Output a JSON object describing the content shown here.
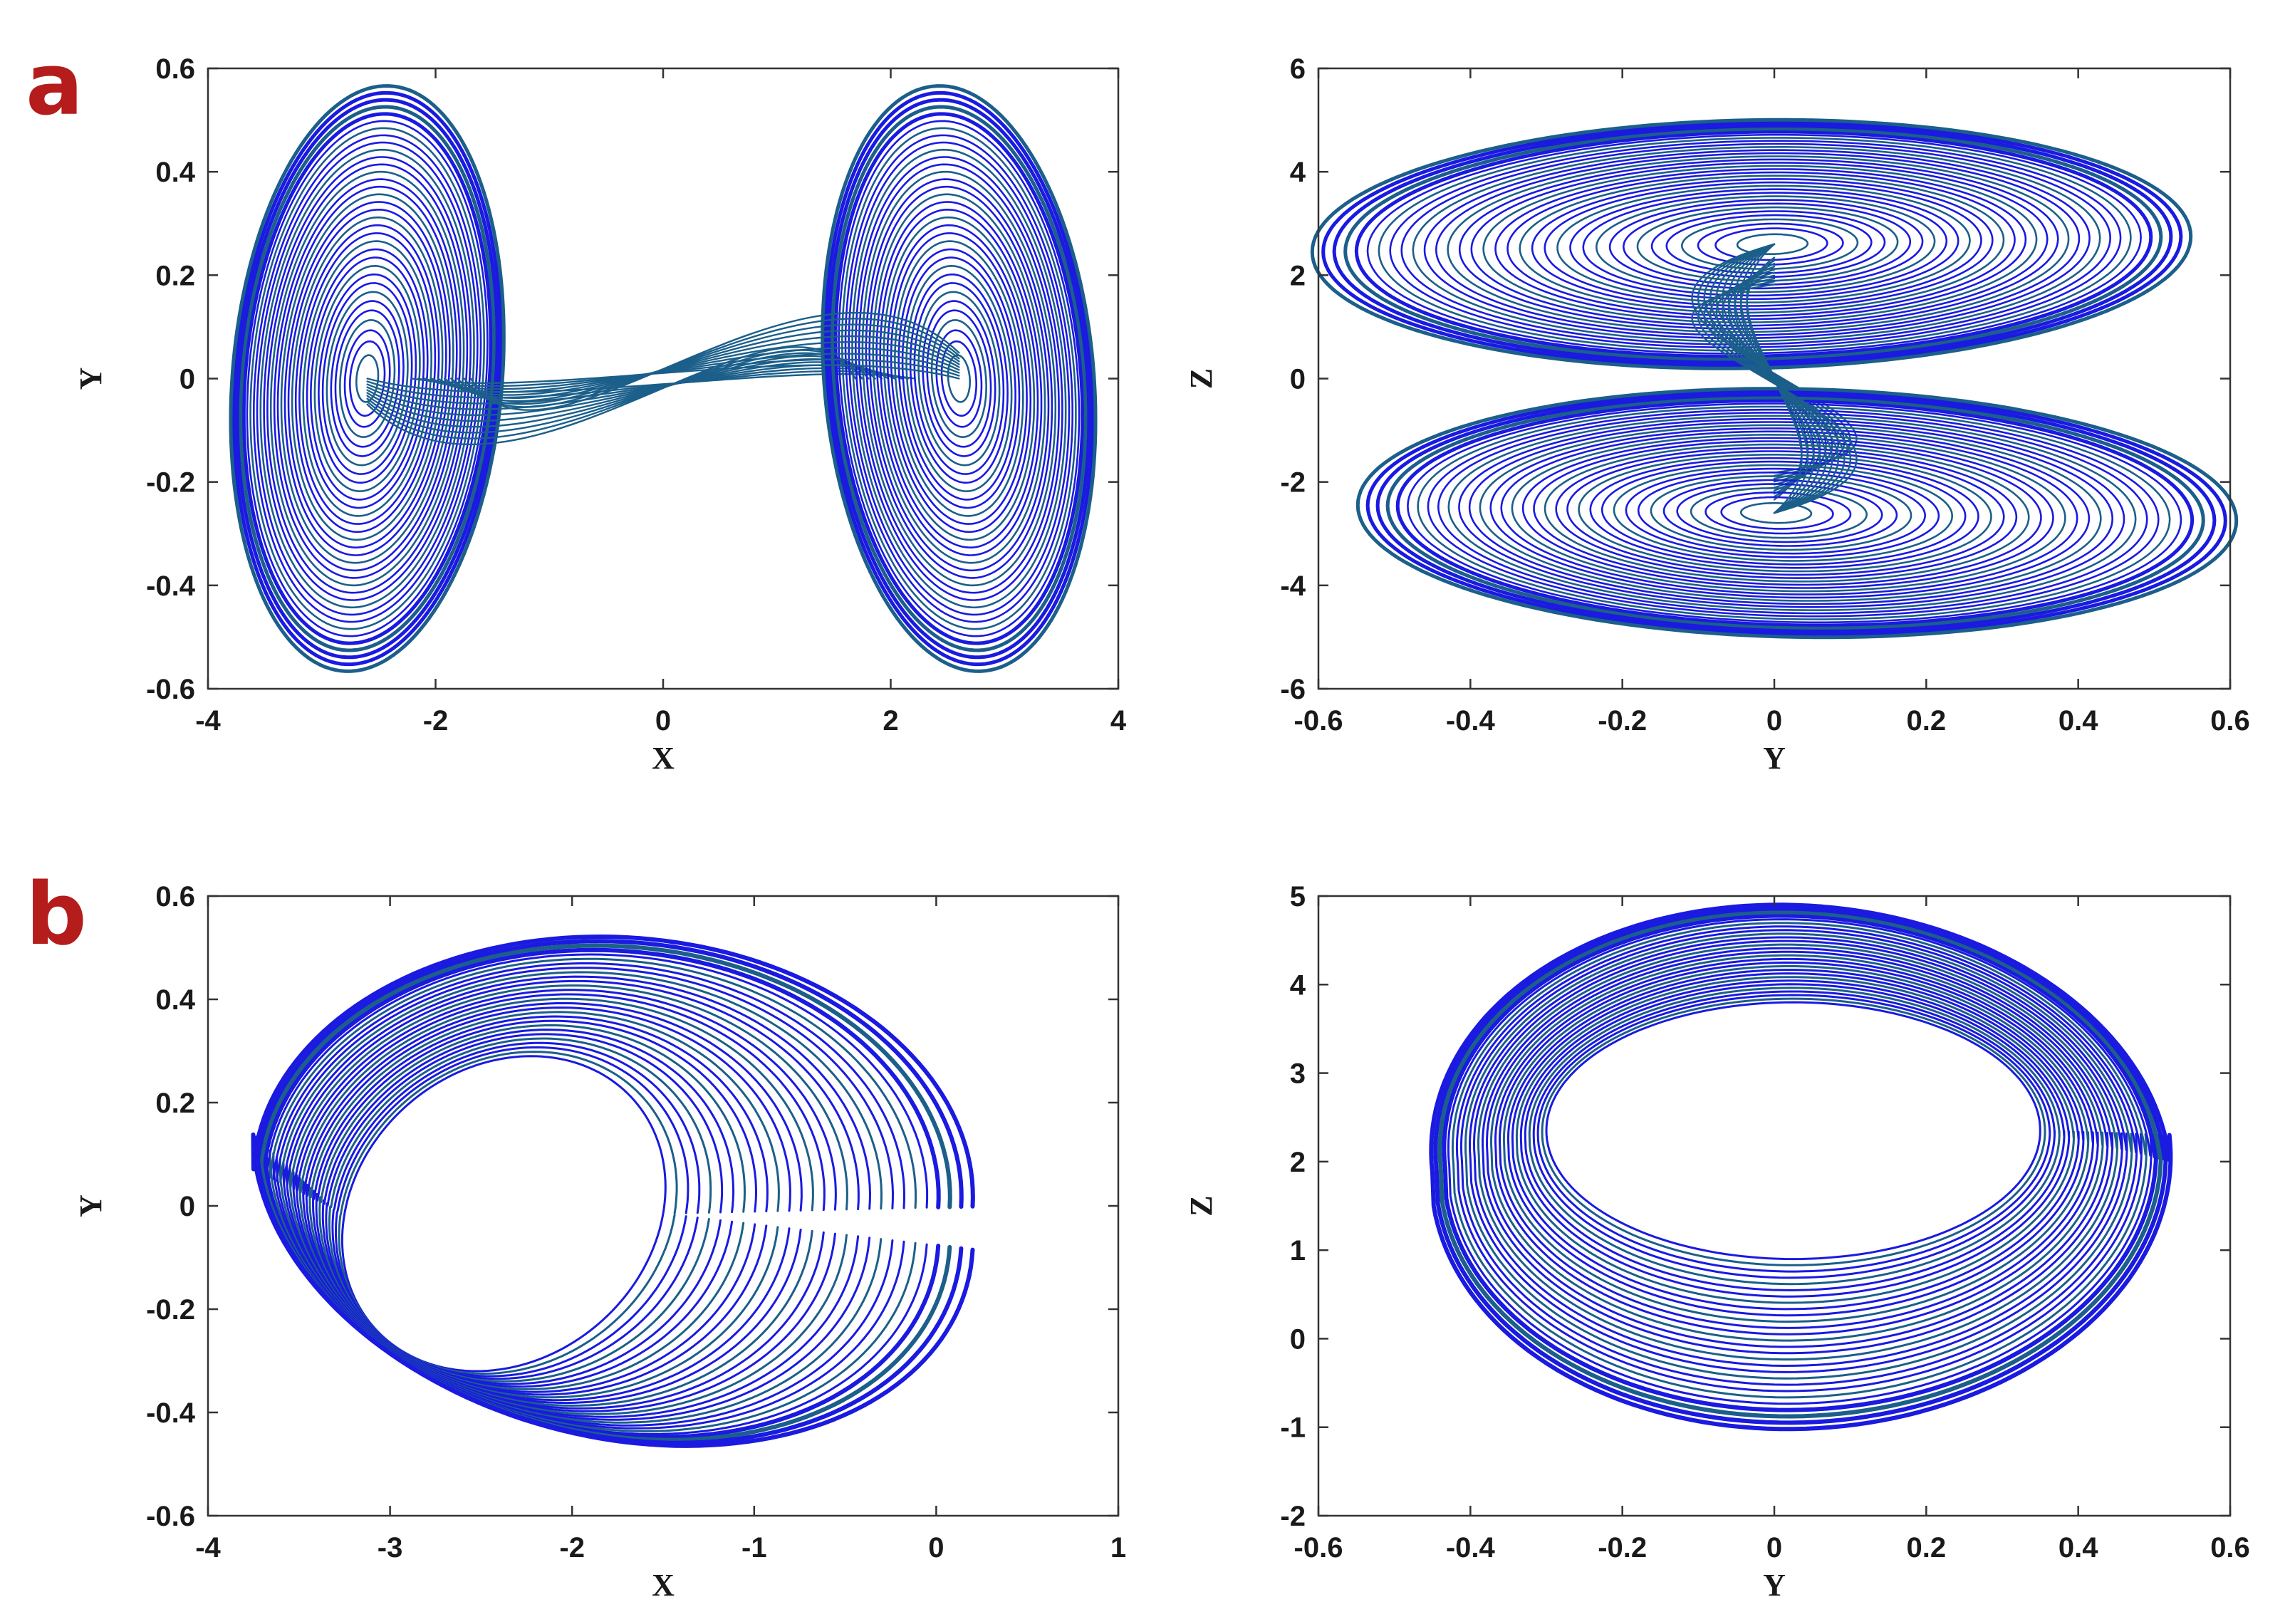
{
  "figure": {
    "panel_labels": [
      "a",
      "b"
    ],
    "colors": {
      "label": "#b51c1c",
      "trajectory": "#1a1ae0",
      "trajectory_inner": "#1b5f8a"
    }
  },
  "chart_data": [
    {
      "type": "line",
      "panel": "a",
      "xlabel": "X",
      "ylabel": "Y",
      "xlim": [
        -4,
        4
      ],
      "ylim": [
        -0.6,
        0.6
      ],
      "xticks": [
        "-4",
        "-2",
        "0",
        "2",
        "4"
      ],
      "yticks": [
        "-0.6",
        "-0.4",
        "-0.2",
        "0",
        "0.2",
        "0.4",
        "0.6"
      ],
      "attractor": "double-scroll",
      "foci": [
        [
          -2.6,
          0
        ],
        [
          2.6,
          0
        ]
      ],
      "outer_extent": {
        "x": [
          -3.8,
          3.8
        ],
        "y": [
          -0.59,
          0.59
        ]
      }
    },
    {
      "type": "line",
      "panel": "a",
      "xlabel": "Y",
      "ylabel": "Z",
      "xlim": [
        -0.6,
        0.6
      ],
      "ylim": [
        -6,
        6
      ],
      "xticks": [
        "-0.6",
        "-0.4",
        "-0.2",
        "0",
        "0.2",
        "0.4",
        "0.6"
      ],
      "yticks": [
        "-6",
        "-4",
        "-2",
        "0",
        "2",
        "4",
        "6"
      ],
      "attractor": "double-scroll",
      "foci": [
        [
          0,
          2.6
        ],
        [
          0,
          -2.6
        ]
      ],
      "outer_extent": {
        "x": [
          -0.58,
          0.59
        ],
        "y": [
          -5,
          5
        ]
      }
    },
    {
      "type": "line",
      "panel": "b",
      "xlabel": "X",
      "ylabel": "Y",
      "xlim": [
        -4,
        1
      ],
      "ylim": [
        -0.6,
        0.6
      ],
      "xticks": [
        "-4",
        "-3",
        "-2",
        "-1",
        "0",
        "1"
      ],
      "yticks": [
        "-0.6",
        "-0.4",
        "-0.2",
        "0",
        "0.2",
        "0.4",
        "0.6"
      ],
      "attractor": "single-scroll",
      "outer_extent": {
        "x": [
          -3.75,
          0.2
        ],
        "y": [
          -0.45,
          0.52
        ]
      },
      "inner_extent": {
        "x": [
          -3.25,
          -1.5
        ],
        "y": [
          -0.32,
          0.29
        ]
      }
    },
    {
      "type": "line",
      "panel": "b",
      "xlabel": "Y",
      "ylabel": "Z",
      "xlim": [
        -0.6,
        0.6
      ],
      "ylim": [
        -2,
        5
      ],
      "xticks": [
        "-0.6",
        "-0.4",
        "-0.2",
        "0",
        "0.2",
        "0.4",
        "0.6"
      ],
      "yticks": [
        "-2",
        "-1",
        "0",
        "1",
        "2",
        "3",
        "4",
        "5"
      ],
      "attractor": "single-scroll",
      "outer_extent": {
        "x": [
          -0.45,
          0.52
        ],
        "y": [
          -1,
          4.9
        ]
      },
      "inner_extent": {
        "x": [
          -0.3,
          0.35
        ],
        "y": [
          0.9,
          3.8
        ]
      }
    }
  ]
}
